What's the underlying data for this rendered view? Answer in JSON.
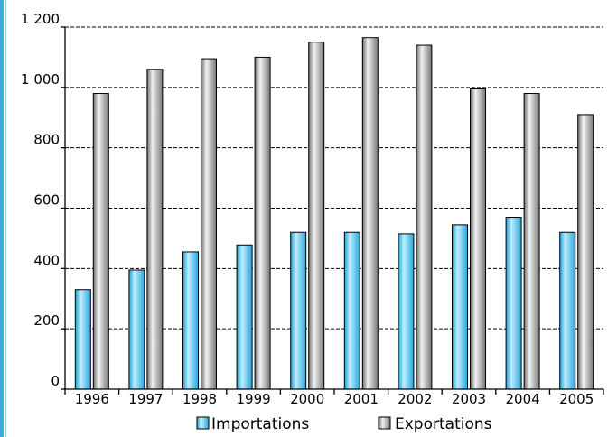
{
  "chart_data": {
    "type": "bar",
    "categories": [
      "1996",
      "1997",
      "1998",
      "1999",
      "2000",
      "2001",
      "2002",
      "2003",
      "2004",
      "2005"
    ],
    "series": [
      {
        "name": "Importations",
        "values": [
          330,
          395,
          455,
          478,
          520,
          520,
          515,
          545,
          570,
          520
        ],
        "color": "#5bc8ef"
      },
      {
        "name": "Exportations",
        "values": [
          980,
          1060,
          1095,
          1100,
          1150,
          1165,
          1140,
          995,
          980,
          910
        ],
        "color": "#a3a3a3"
      }
    ],
    "y_ticks": [
      {
        "value": 0,
        "label": "0"
      },
      {
        "value": 200,
        "label": "200"
      },
      {
        "value": 400,
        "label": "400"
      },
      {
        "value": 600,
        "label": "600"
      },
      {
        "value": 800,
        "label": "800"
      },
      {
        "value": 1000,
        "label": "1 000"
      },
      {
        "value": 1200,
        "label": "1 200"
      }
    ],
    "ylim": [
      0,
      1200
    ],
    "grid": true,
    "legend_position": "bottom",
    "accent_border_color": "#3fa9e0"
  }
}
